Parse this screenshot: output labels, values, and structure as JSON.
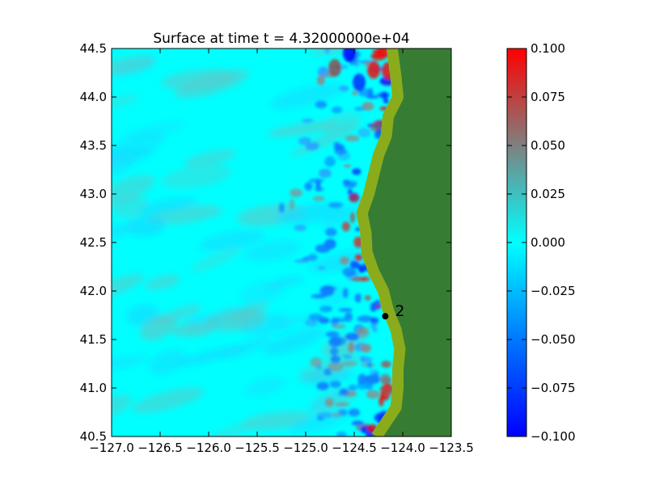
{
  "chart_data": {
    "type": "heatmap",
    "title": "Surface at time t = 4.32000000e+04",
    "xlabel": "",
    "ylabel": "",
    "xlim": [
      -127.0,
      -123.5
    ],
    "ylim": [
      40.5,
      44.5
    ],
    "x_ticks": [
      -127.0,
      -126.5,
      -126.0,
      -125.5,
      -125.0,
      -124.5,
      -124.0,
      -123.5
    ],
    "x_tick_labels": [
      "−127.0",
      "−126.5",
      "−126.0",
      "−125.5",
      "−125.0",
      "−124.5",
      "−124.0",
      "−123.5"
    ],
    "y_ticks": [
      40.5,
      41.0,
      41.5,
      42.0,
      42.5,
      43.0,
      43.5,
      44.0,
      44.5
    ],
    "y_tick_labels": [
      "40.5",
      "41.0",
      "41.5",
      "42.0",
      "42.5",
      "43.0",
      "43.5",
      "44.0",
      "44.5"
    ],
    "colorbar": {
      "range": [
        -0.1,
        0.1
      ],
      "ticks": [
        0.1,
        0.075,
        0.05,
        0.025,
        0.0,
        -0.025,
        -0.05,
        -0.075,
        -0.1
      ],
      "tick_labels": [
        "0.100",
        "0.075",
        "0.050",
        "0.025",
        "0.000",
        "−0.025",
        "−0.050",
        "−0.075",
        "−0.100"
      ],
      "colors": [
        "#0000ff",
        "#00ffff",
        "#ff0000"
      ]
    },
    "background_value": 0.0,
    "land_color": "#367d33",
    "shore_color": "#8aac1c",
    "coastline": [
      [
        44.5,
        -124.16
      ],
      [
        44.2,
        -124.12
      ],
      [
        44.0,
        -124.1
      ],
      [
        43.8,
        -124.2
      ],
      [
        43.6,
        -124.22
      ],
      [
        43.4,
        -124.3
      ],
      [
        43.2,
        -124.35
      ],
      [
        43.0,
        -124.4
      ],
      [
        42.8,
        -124.47
      ],
      [
        42.6,
        -124.43
      ],
      [
        42.4,
        -124.42
      ],
      [
        42.2,
        -124.35
      ],
      [
        42.0,
        -124.25
      ],
      [
        41.8,
        -124.2
      ],
      [
        41.6,
        -124.12
      ],
      [
        41.4,
        -124.08
      ],
      [
        41.2,
        -124.1
      ],
      [
        41.0,
        -124.1
      ],
      [
        40.8,
        -124.12
      ],
      [
        40.5,
        -124.32
      ]
    ],
    "gauge": {
      "label": "2",
      "lon": -124.18,
      "lat": 41.74
    }
  }
}
